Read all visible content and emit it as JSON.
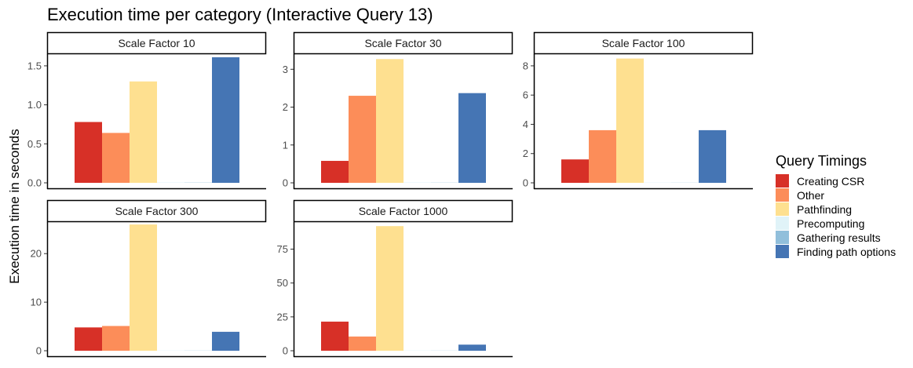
{
  "chart_data": {
    "type": "bar",
    "title": "Execution time per category (Interactive Query 13)",
    "ylabel": "Execution time in seconds",
    "xlabel": "",
    "legend": {
      "title": "Query Timings",
      "placement": "right"
    },
    "categories": [
      "Creating CSR",
      "Other",
      "Pathfinding",
      "Precomputing",
      "Gathering results",
      "Finding path options"
    ],
    "colors": [
      "#d73027",
      "#fc8d59",
      "#fee090",
      "#e0f3f8",
      "#91bfdb",
      "#4575b4"
    ],
    "grid": false,
    "panels": [
      {
        "label": "Scale Factor 10",
        "ylim": [
          0,
          1.65
        ],
        "yticks": [
          0,
          0.5,
          1,
          1.5
        ],
        "ytick_labels": [
          "0.0",
          "0.5",
          "1.0",
          "1.5"
        ],
        "values": [
          0.78,
          0.64,
          1.3,
          0.005,
          0.003,
          1.61
        ]
      },
      {
        "label": "Scale Factor 30",
        "ylim": [
          0,
          3.4
        ],
        "yticks": [
          0,
          1,
          2,
          3
        ],
        "ytick_labels": [
          "0",
          "1",
          "2",
          "3"
        ],
        "values": [
          0.58,
          2.3,
          3.27,
          0.01,
          0.005,
          2.37
        ]
      },
      {
        "label": "Scale Factor 100",
        "ylim": [
          0,
          8.8
        ],
        "yticks": [
          0,
          2,
          4,
          6,
          8
        ],
        "ytick_labels": [
          "0",
          "2",
          "4",
          "6",
          "8"
        ],
        "values": [
          1.6,
          3.6,
          8.5,
          0.02,
          0.01,
          3.6
        ]
      },
      {
        "label": "Scale Factor 300",
        "ylim": [
          0,
          26.5
        ],
        "yticks": [
          0,
          10,
          20
        ],
        "ytick_labels": [
          "0",
          "10",
          "20"
        ],
        "values": [
          4.8,
          5.1,
          26,
          0.05,
          0.03,
          3.9
        ]
      },
      {
        "label": "Scale Factor 1000",
        "ylim": [
          0,
          95
        ],
        "yticks": [
          0,
          25,
          50,
          75
        ],
        "ytick_labels": [
          "0",
          "25",
          "50",
          "75"
        ],
        "values": [
          21.5,
          10.5,
          92,
          0.2,
          0.1,
          4.5
        ]
      }
    ]
  }
}
